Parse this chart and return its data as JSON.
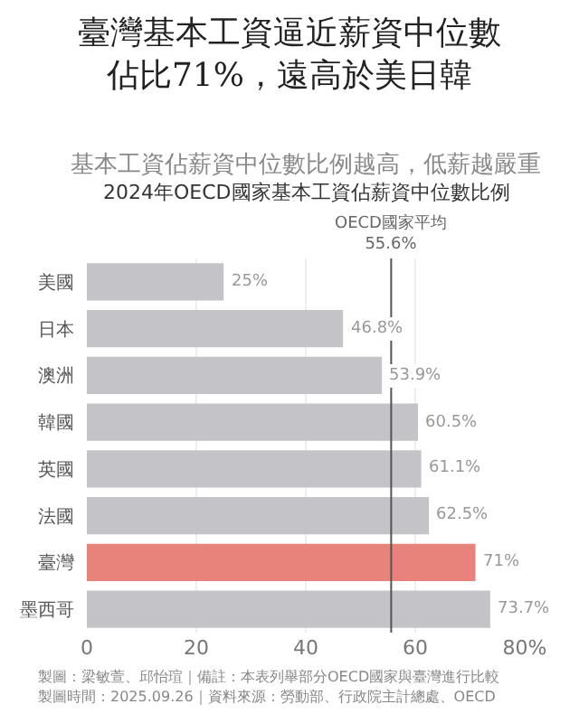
{
  "chart_data": {
    "type": "bar",
    "orientation": "horizontal",
    "title": "臺灣基本工資逼近薪資中位數佔比71%，遠高於美日韓",
    "subtitle": "基本工資佔薪資中位數比例越高，低薪越嚴重",
    "annotations": [
      "2024年OECD國家基本工資佔薪資中位數比例",
      "製圖：梁敏萱、邱怡瑄｜備註：本表列舉部分OECD國家與臺灣進行比較",
      "製圖時間：2025.09.26｜資料來源：勞動部、行政院主計總處、OECD"
    ],
    "categories": [
      "美國",
      "日本",
      "澳洲",
      "韓國",
      "英國",
      "法國",
      "臺灣",
      "墨西哥"
    ],
    "values": [
      25,
      46.8,
      53.9,
      60.5,
      61.1,
      62.5,
      71,
      73.7
    ],
    "value_labels": [
      "25%",
      "46.8%",
      "53.9%",
      "60.5%",
      "61.1%",
      "62.5%",
      "71%",
      "73.7%"
    ],
    "colors": [
      "#c4c4c8",
      "#c4c4c8",
      "#c4c4c8",
      "#c4c4c8",
      "#c4c4c8",
      "#c4c4c8",
      "#e8837c",
      "#c4c4c8"
    ],
    "xlim": [
      0,
      80
    ],
    "xticks": [
      0,
      20,
      40,
      60,
      {
        "value": 80,
        "label": "80%"
      }
    ],
    "ref_lines": [
      {
        "axis": "x",
        "value": 55.6,
        "label": "OECD國家平均\n55.6%",
        "color": "#555555"
      }
    ],
    "grid": "x"
  }
}
